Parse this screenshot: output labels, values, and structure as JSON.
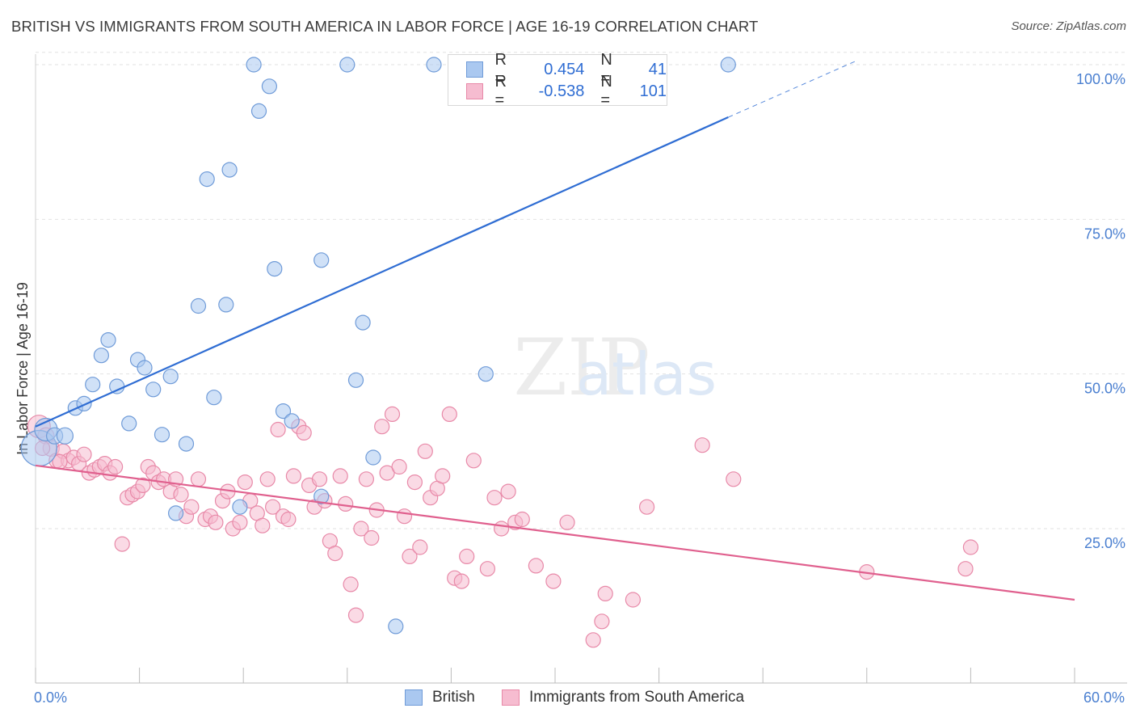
{
  "title": "BRITISH VS IMMIGRANTS FROM SOUTH AMERICA IN LABOR FORCE | AGE 16-19 CORRELATION CHART",
  "source": "Source: ZipAtlas.com",
  "watermark": "ZIPatlas",
  "legend_top": {
    "r1_label": "R =",
    "r1_value": "0.454",
    "n1_label": "N =",
    "n1_value": "41",
    "r2_label": "R =",
    "r2_value": "-0.538",
    "n2_label": "N =",
    "n2_value": "101"
  },
  "colors": {
    "british_fill": "#aac8f0",
    "british_stroke": "#6f9bd8",
    "british_line": "#2f6dd3",
    "immig_fill": "#f6bcd0",
    "immig_stroke": "#e889a8",
    "immig_line": "#e0608e",
    "tick_text": "#4a7fd0",
    "grid": "#e2e2e2"
  },
  "chart_data": {
    "type": "scatter",
    "title": "BRITISH VS IMMIGRANTS FROM SOUTH AMERICA IN LABOR FORCE | AGE 16-19 CORRELATION CHART",
    "xlabel": "",
    "ylabel": "In Labor Force | Age 16-19",
    "xlim": [
      0,
      60
    ],
    "ylim": [
      0,
      102
    ],
    "x_tick_labels": [
      "0.0%",
      "60.0%"
    ],
    "y_ticks": [
      25,
      50,
      75,
      100
    ],
    "y_tick_labels": [
      "25.0%",
      "50.0%",
      "75.0%",
      "100.0%"
    ],
    "grid": true,
    "legend_position": "bottom",
    "series": [
      {
        "name": "British",
        "r": 0.454,
        "n": 41,
        "trend": {
          "x0": 0,
          "y0": 41.5,
          "x1": 40,
          "y1": 91.5,
          "dashed_to_x": 47.3,
          "dashed_to_y": 100.5
        },
        "points": [
          [
            0.2,
            38.0,
            22
          ],
          [
            0.6,
            41.0,
            14
          ],
          [
            1.1,
            40.0,
            10
          ],
          [
            1.7,
            40.0,
            10
          ],
          [
            2.3,
            44.5,
            9
          ],
          [
            2.8,
            45.2,
            9
          ],
          [
            3.3,
            48.3,
            9
          ],
          [
            3.8,
            53.0,
            9
          ],
          [
            4.2,
            55.5,
            9
          ],
          [
            4.7,
            48.0,
            9
          ],
          [
            5.4,
            42.0,
            9
          ],
          [
            5.9,
            52.3,
            9
          ],
          [
            6.3,
            51.0,
            9
          ],
          [
            6.8,
            47.5,
            9
          ],
          [
            7.3,
            40.2,
            9
          ],
          [
            7.8,
            49.6,
            9
          ],
          [
            8.1,
            27.5,
            9
          ],
          [
            8.7,
            38.7,
            9
          ],
          [
            9.4,
            61.0,
            9
          ],
          [
            9.9,
            81.5,
            9
          ],
          [
            10.3,
            46.2,
            9
          ],
          [
            11.0,
            61.2,
            9
          ],
          [
            11.2,
            83.0,
            9
          ],
          [
            11.8,
            28.5,
            9
          ],
          [
            12.6,
            100.0,
            9
          ],
          [
            12.9,
            92.5,
            9
          ],
          [
            13.5,
            96.5,
            9
          ],
          [
            13.8,
            67.0,
            9
          ],
          [
            14.3,
            44.0,
            9
          ],
          [
            14.8,
            42.4,
            9
          ],
          [
            16.5,
            30.2,
            9
          ],
          [
            16.5,
            68.4,
            9
          ],
          [
            18.0,
            100.0,
            9
          ],
          [
            18.5,
            49.0,
            9
          ],
          [
            18.9,
            58.3,
            9
          ],
          [
            19.5,
            36.5,
            9
          ],
          [
            20.8,
            9.2,
            9
          ],
          [
            23.0,
            100.0,
            9
          ],
          [
            26.0,
            50.0,
            9
          ],
          [
            31.5,
            100.0,
            9
          ],
          [
            40.0,
            100.0,
            9
          ]
        ]
      },
      {
        "name": "Immigrants from South America",
        "r": -0.538,
        "n": 101,
        "trend": {
          "x0": 0,
          "y0": 35.2,
          "x1": 60,
          "y1": 13.5
        },
        "points": [
          [
            0.2,
            41.5,
            14
          ],
          [
            0.6,
            40.0,
            10
          ],
          [
            0.9,
            38.0,
            10
          ],
          [
            1.2,
            36.0,
            9
          ],
          [
            1.6,
            37.5,
            9
          ],
          [
            1.9,
            36.0,
            9
          ],
          [
            2.2,
            36.5,
            9
          ],
          [
            2.5,
            35.5,
            9
          ],
          [
            2.8,
            37.0,
            9
          ],
          [
            3.1,
            34.0,
            9
          ],
          [
            3.4,
            34.5,
            9
          ],
          [
            3.7,
            35.0,
            9
          ],
          [
            4.0,
            35.5,
            9
          ],
          [
            4.3,
            34.0,
            9
          ],
          [
            4.6,
            35.0,
            9
          ],
          [
            5.0,
            22.5,
            9
          ],
          [
            5.3,
            30.0,
            9
          ],
          [
            5.6,
            30.5,
            9
          ],
          [
            5.9,
            31.0,
            9
          ],
          [
            6.2,
            32.0,
            9
          ],
          [
            6.5,
            35.0,
            9
          ],
          [
            6.8,
            34.0,
            9
          ],
          [
            7.1,
            32.5,
            9
          ],
          [
            7.4,
            33.0,
            9
          ],
          [
            7.8,
            31.0,
            9
          ],
          [
            8.1,
            33.0,
            9
          ],
          [
            8.4,
            30.5,
            9
          ],
          [
            8.7,
            27.0,
            9
          ],
          [
            9.0,
            28.5,
            9
          ],
          [
            9.4,
            33.0,
            9
          ],
          [
            9.8,
            26.5,
            9
          ],
          [
            10.1,
            27.0,
            9
          ],
          [
            10.4,
            26.0,
            9
          ],
          [
            10.8,
            29.5,
            9
          ],
          [
            11.1,
            31.0,
            9
          ],
          [
            11.4,
            25.0,
            9
          ],
          [
            11.8,
            26.0,
            9
          ],
          [
            12.1,
            32.5,
            9
          ],
          [
            12.4,
            29.5,
            9
          ],
          [
            12.8,
            27.5,
            9
          ],
          [
            13.1,
            25.5,
            9
          ],
          [
            13.4,
            33.0,
            9
          ],
          [
            13.7,
            28.5,
            9
          ],
          [
            14.0,
            41.0,
            9
          ],
          [
            14.3,
            27.0,
            9
          ],
          [
            14.6,
            26.5,
            9
          ],
          [
            14.9,
            33.5,
            9
          ],
          [
            15.2,
            41.5,
            9
          ],
          [
            15.5,
            40.5,
            9
          ],
          [
            15.8,
            32.0,
            9
          ],
          [
            16.1,
            28.5,
            9
          ],
          [
            16.4,
            33.0,
            9
          ],
          [
            16.7,
            29.5,
            9
          ],
          [
            17.0,
            23.0,
            9
          ],
          [
            17.3,
            21.0,
            9
          ],
          [
            17.6,
            33.5,
            9
          ],
          [
            17.9,
            29.0,
            9
          ],
          [
            18.2,
            16.0,
            9
          ],
          [
            18.5,
            11.0,
            9
          ],
          [
            18.8,
            25.0,
            9
          ],
          [
            19.1,
            33.0,
            9
          ],
          [
            19.4,
            23.5,
            9
          ],
          [
            19.7,
            28.0,
            9
          ],
          [
            20.0,
            41.5,
            9
          ],
          [
            20.3,
            34.0,
            9
          ],
          [
            20.6,
            43.5,
            9
          ],
          [
            21.0,
            35.0,
            9
          ],
          [
            21.3,
            27.0,
            9
          ],
          [
            21.6,
            20.5,
            9
          ],
          [
            21.9,
            32.5,
            9
          ],
          [
            22.2,
            22.0,
            9
          ],
          [
            22.5,
            37.5,
            9
          ],
          [
            22.8,
            30.0,
            9
          ],
          [
            23.2,
            31.5,
            9
          ],
          [
            23.5,
            33.5,
            9
          ],
          [
            23.9,
            43.5,
            9
          ],
          [
            24.2,
            17.0,
            9
          ],
          [
            24.6,
            16.5,
            9
          ],
          [
            24.9,
            20.5,
            9
          ],
          [
            25.3,
            36.0,
            9
          ],
          [
            26.1,
            18.5,
            9
          ],
          [
            26.5,
            30.0,
            9
          ],
          [
            26.9,
            25.0,
            9
          ],
          [
            27.3,
            31.0,
            9
          ],
          [
            27.7,
            26.0,
            9
          ],
          [
            28.1,
            26.5,
            9
          ],
          [
            28.9,
            19.0,
            9
          ],
          [
            29.9,
            16.5,
            9
          ],
          [
            30.7,
            26.0,
            9
          ],
          [
            32.2,
            7.0,
            9
          ],
          [
            32.7,
            10.0,
            9
          ],
          [
            32.9,
            14.5,
            9
          ],
          [
            34.5,
            13.5,
            9
          ],
          [
            35.3,
            28.5,
            9
          ],
          [
            38.5,
            38.5,
            9
          ],
          [
            40.3,
            33.0,
            9
          ],
          [
            48.0,
            18.0,
            9
          ],
          [
            53.7,
            18.5,
            9
          ],
          [
            54.0,
            22.0,
            9
          ],
          [
            0.4,
            38.0,
            9
          ],
          [
            1.4,
            35.8,
            9
          ]
        ]
      }
    ]
  },
  "bottom_legend": {
    "british": "British",
    "immig": "Immigrants from South America"
  }
}
